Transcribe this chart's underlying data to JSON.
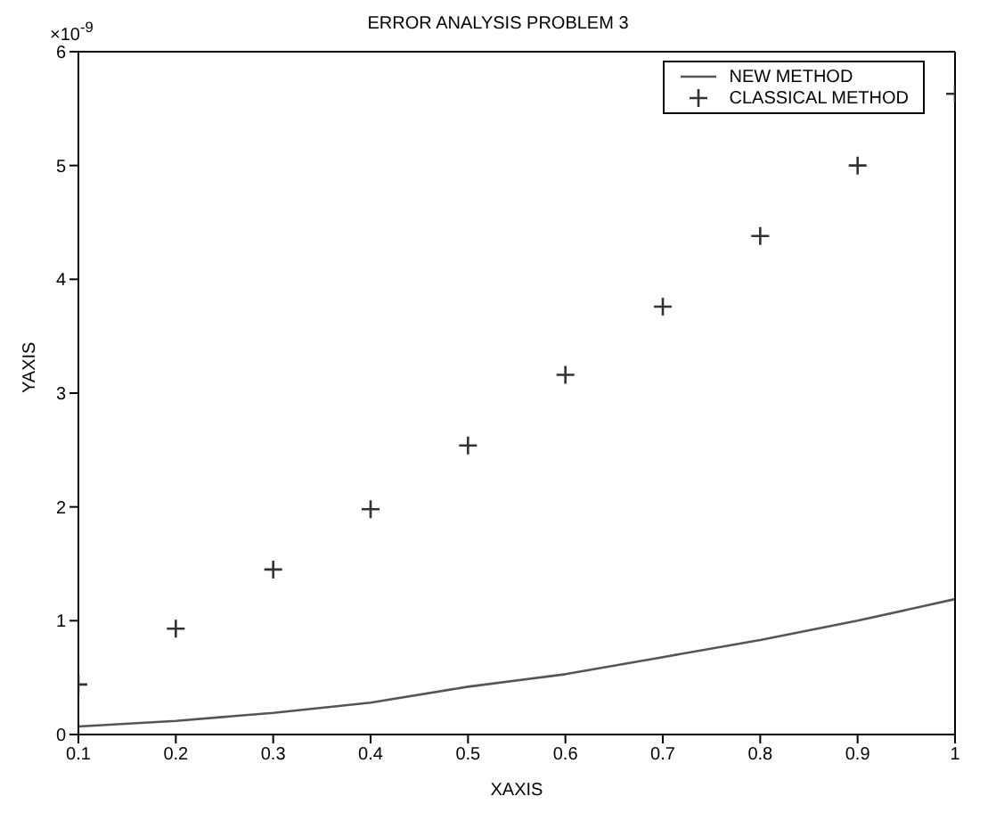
{
  "chart_data": {
    "type": "line",
    "title": "ERROR ANALYSIS PROBLEM 3",
    "xlabel": "XAXIS",
    "ylabel": "YAXIS",
    "annotations": [
      "×10$^{-9}$"
    ],
    "x": [
      0.1,
      0.2,
      0.3,
      0.4,
      0.5,
      0.6,
      0.7,
      0.8,
      0.9,
      1.0
    ],
    "series": [
      {
        "name": "NEW METHOD",
        "color": "#555555",
        "marker": "none",
        "values": [
          0.07,
          0.12,
          0.19,
          0.28,
          0.42,
          0.53,
          0.68,
          0.83,
          1.0,
          1.19
        ]
      },
      {
        "name": "CLASSICAL METHOD",
        "type": "scatter",
        "color": "#333333",
        "marker": "cross",
        "values": [
          0.44,
          0.93,
          1.45,
          1.98,
          2.54,
          3.16,
          3.76,
          4.38,
          5.0,
          5.63
        ]
      }
    ],
    "xlim": [
      0.1,
      1
    ],
    "xticks": [
      0.1,
      0.2,
      0.3,
      0.4,
      0.5,
      0.6,
      0.7,
      0.8,
      0.9,
      1
    ],
    "ylim": [
      0,
      6
    ],
    "yticks": [
      0,
      1,
      2,
      3,
      4,
      5,
      6
    ],
    "legend": "top right",
    "grid": false
  }
}
